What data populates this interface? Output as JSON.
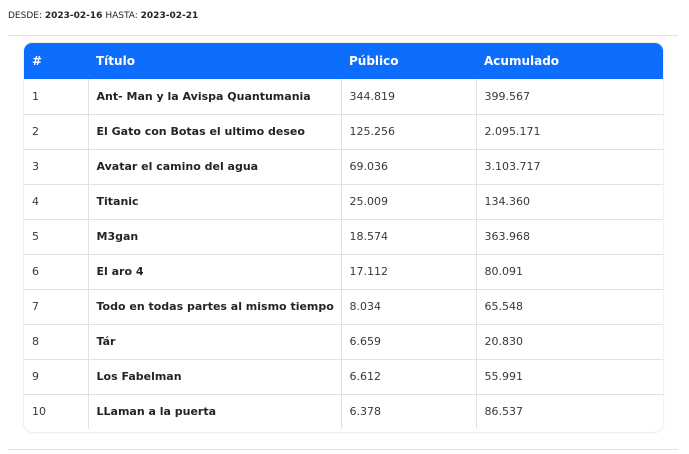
{
  "range": {
    "from_label": "DESDE:",
    "from_value": "2023-02-16",
    "to_label": "HASTA:",
    "to_value": "2023-02-21"
  },
  "table": {
    "headers": {
      "num": "#",
      "title": "Título",
      "public": "Público",
      "cumulative": "Acumulado"
    },
    "accent_color": "#0d6efd",
    "rows": [
      {
        "num": "1",
        "title": "Ant- Man y la Avispa Quantumania",
        "public": "344.819",
        "cumulative": "399.567"
      },
      {
        "num": "2",
        "title": "El Gato con Botas el ultimo deseo",
        "public": "125.256",
        "cumulative": "2.095.171"
      },
      {
        "num": "3",
        "title": "Avatar el camino del agua",
        "public": "69.036",
        "cumulative": "3.103.717"
      },
      {
        "num": "4",
        "title": "Titanic",
        "public": "25.009",
        "cumulative": "134.360"
      },
      {
        "num": "5",
        "title": "M3gan",
        "public": "18.574",
        "cumulative": "363.968"
      },
      {
        "num": "6",
        "title": "El aro 4",
        "public": "17.112",
        "cumulative": "80.091"
      },
      {
        "num": "7",
        "title": "Todo en todas partes al mismo tiempo",
        "public": "8.034",
        "cumulative": "65.548"
      },
      {
        "num": "8",
        "title": "Tár",
        "public": "6.659",
        "cumulative": "20.830"
      },
      {
        "num": "9",
        "title": "Los Fabelman",
        "public": "6.612",
        "cumulative": "55.991"
      },
      {
        "num": "10",
        "title": "LLaman a la puerta",
        "public": "6.378",
        "cumulative": "86.537"
      }
    ]
  }
}
